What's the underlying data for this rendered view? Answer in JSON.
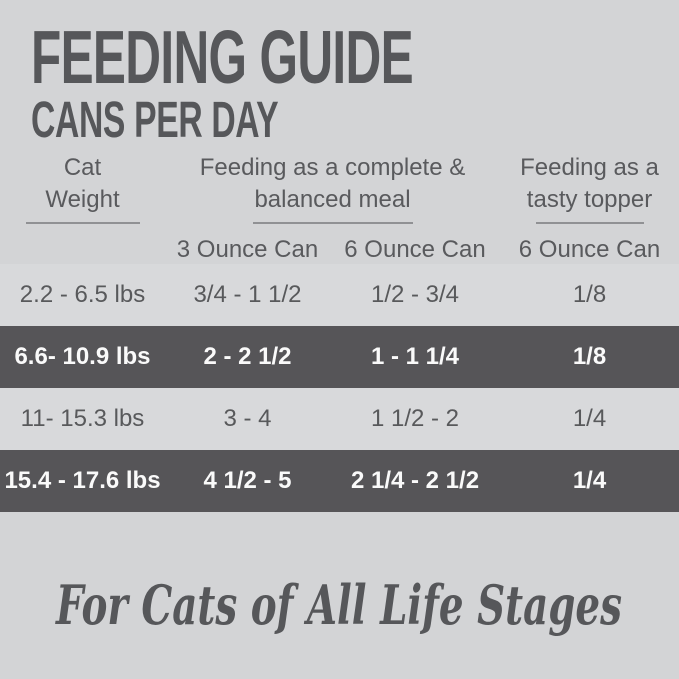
{
  "title": "FEEDING GUIDE",
  "subtitle": "CANS PER DAY",
  "table": {
    "col_headers": [
      {
        "lines": [
          "Cat",
          "Weight"
        ]
      },
      {
        "lines": [
          "Feeding as a complete &",
          "balanced meal"
        ]
      },
      {
        "lines": [
          "Feeding as a",
          "tasty topper"
        ]
      }
    ],
    "sub_headers": [
      "3 Ounce Can",
      "6 Ounce Can",
      "6 Ounce Can"
    ],
    "rows": [
      {
        "highlight": false,
        "cells": [
          "2.2 - 6.5 lbs",
          "3/4 - 1 1/2",
          "1/2 - 3/4",
          "1/8"
        ]
      },
      {
        "highlight": true,
        "cells": [
          "6.6- 10.9 lbs",
          "2 - 2 1/2",
          "1 - 1 1/4",
          "1/8"
        ]
      },
      {
        "highlight": false,
        "cells": [
          "11- 15.3 lbs",
          "3 - 4",
          "1 1/2 - 2",
          "1/4"
        ]
      },
      {
        "highlight": true,
        "cells": [
          "15.4 - 17.6 lbs",
          "4 1/2 - 5",
          "2 1/4 - 2 1/2",
          "1/4"
        ]
      }
    ]
  },
  "footer_script": "For Cats of All Life Stages",
  "colors": {
    "background": "#d3d4d6",
    "light_row": "#d8d9db",
    "dark_row": "#565558",
    "dark_row_text": "#fafafa",
    "text": "#58595b",
    "underline": "#909194"
  }
}
